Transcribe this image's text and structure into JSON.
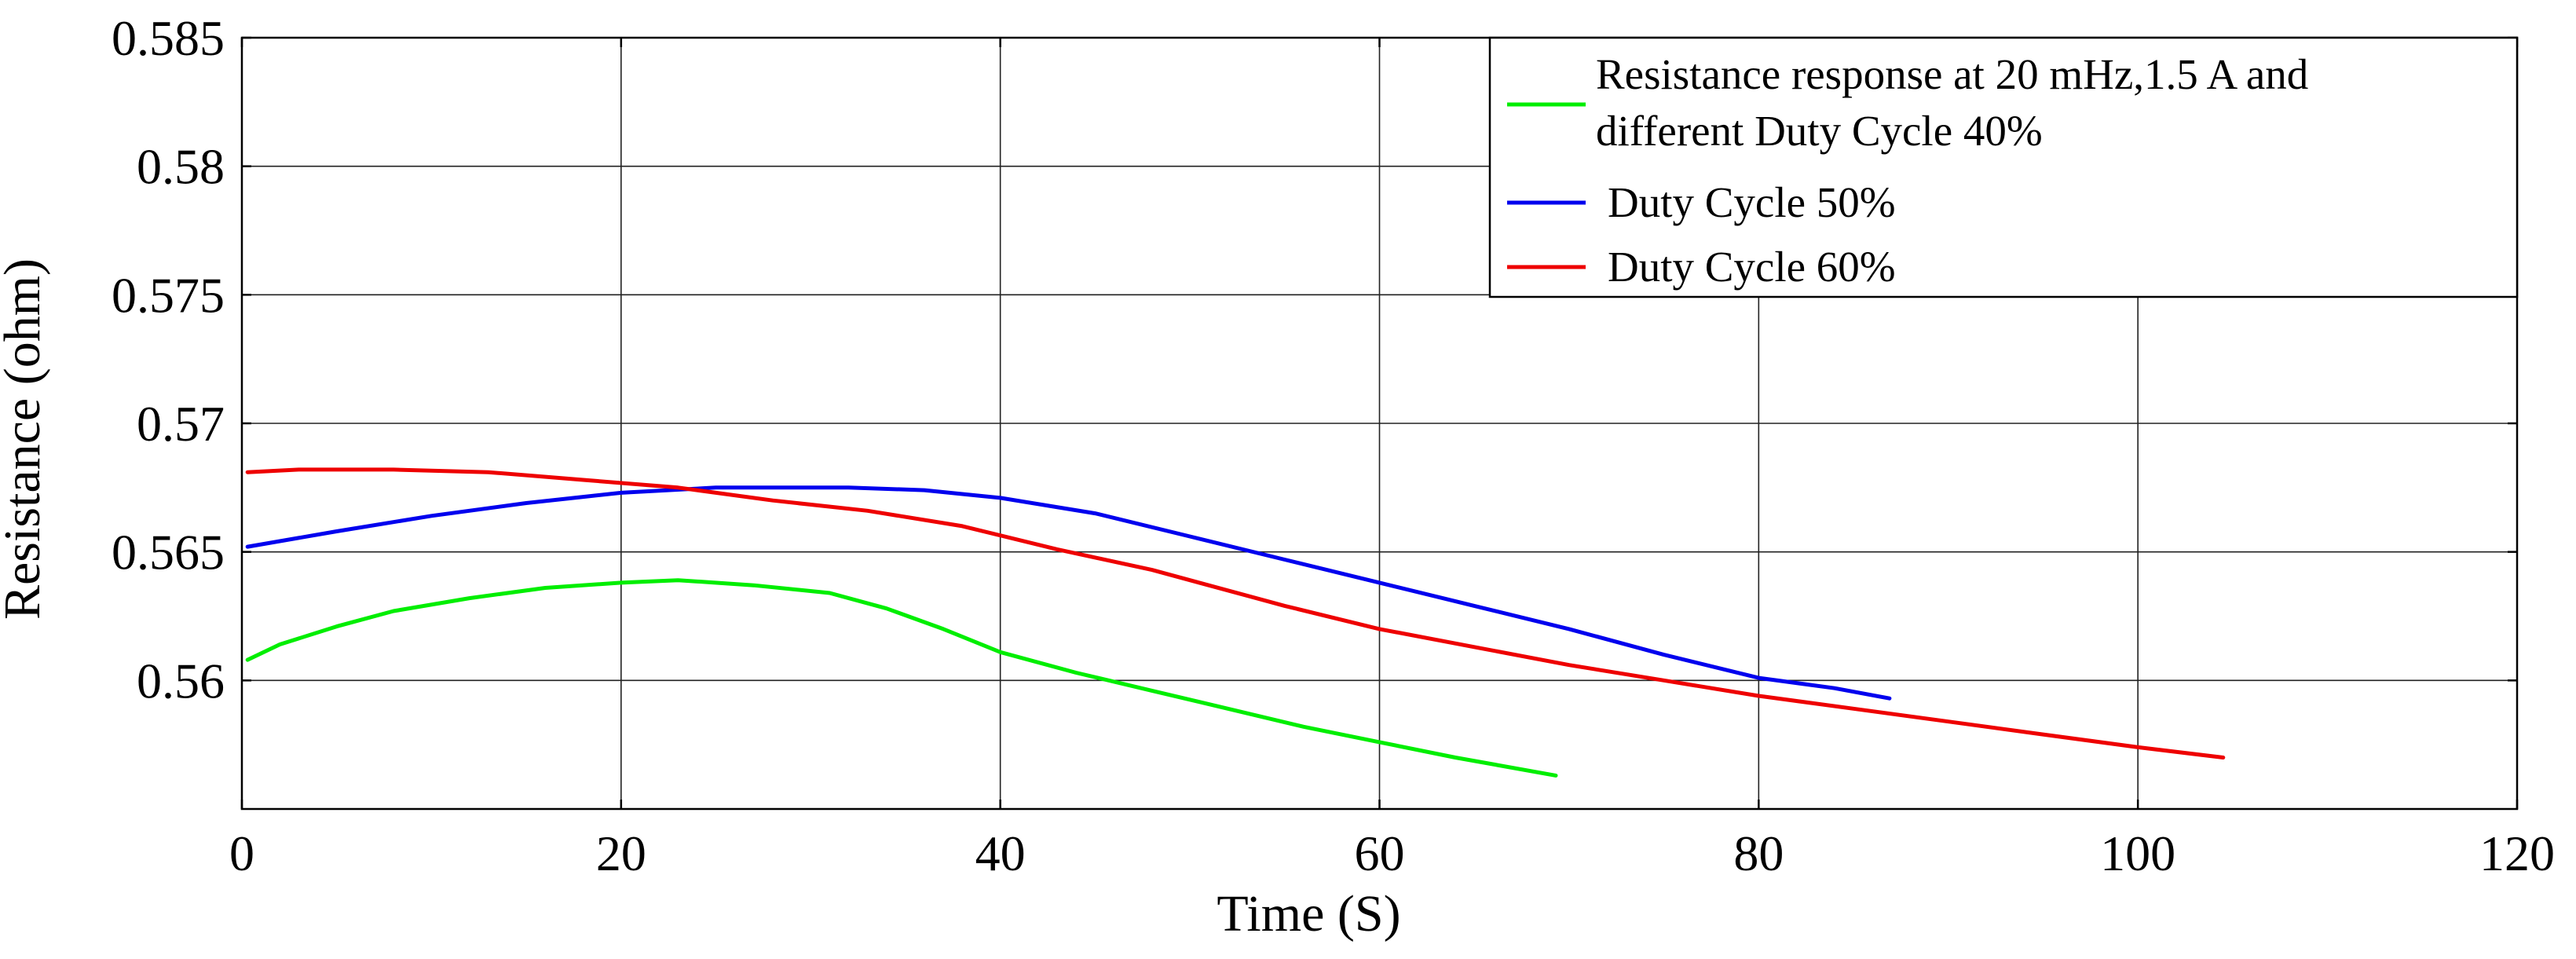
{
  "chart_data": {
    "type": "line",
    "title": "",
    "xlabel": "Time (S)",
    "ylabel": "Resistance (ohm)",
    "xlim": [
      0,
      120
    ],
    "ylim": [
      0.555,
      0.585
    ],
    "grid": true,
    "x_ticks": [
      0,
      20,
      40,
      60,
      80,
      100,
      120
    ],
    "y_ticks": [
      0.56,
      0.565,
      0.57,
      0.575,
      0.58,
      0.585
    ],
    "x_tick_labels": [
      "0",
      "20",
      "40",
      "60",
      "80",
      "100",
      "120"
    ],
    "y_tick_labels": [
      "0.56",
      "0.565",
      "0.57",
      "0.575",
      "0.58",
      "0.585"
    ],
    "legend_position": "top-right",
    "series": [
      {
        "name": "Resistance response at 20 mHz,1.5 A and different Duty Cycle 40%",
        "legend_lines": [
          "Resistance response at 20 mHz,1.5 A and",
          "different Duty Cycle 40%"
        ],
        "color": "#00ee00",
        "x": [
          0.3,
          2,
          5,
          8,
          12,
          16,
          20,
          23,
          27,
          31,
          34,
          37,
          40,
          44,
          48,
          52,
          56,
          60,
          64,
          69.3
        ],
        "y": [
          0.5608,
          0.5614,
          0.5621,
          0.5627,
          0.5632,
          0.5636,
          0.5638,
          0.5639,
          0.5637,
          0.5634,
          0.5628,
          0.562,
          0.5611,
          0.5603,
          0.5596,
          0.5589,
          0.5582,
          0.5576,
          0.557,
          0.5563
        ]
      },
      {
        "name": "Duty Cycle 50%",
        "legend_lines": [
          "Duty Cycle 50%"
        ],
        "color": "#0000ee",
        "x": [
          0.3,
          5,
          10,
          15,
          20,
          25,
          32,
          36,
          40,
          45,
          50,
          55,
          60,
          65,
          70,
          75,
          80,
          84,
          86.9
        ],
        "y": [
          0.5652,
          0.5658,
          0.5664,
          0.5669,
          0.5673,
          0.5675,
          0.5675,
          0.5674,
          0.5671,
          0.5665,
          0.5656,
          0.5647,
          0.5638,
          0.5629,
          0.562,
          0.561,
          0.5601,
          0.5597,
          0.5593
        ]
      },
      {
        "name": "Duty Cycle 60%",
        "legend_lines": [
          "Duty Cycle 60%"
        ],
        "color": "#ee0000",
        "x": [
          0.3,
          3,
          8,
          13,
          18,
          23,
          28,
          33,
          38,
          43,
          48,
          55,
          60,
          65,
          70,
          75,
          80,
          85,
          90,
          95,
          100,
          104.5
        ],
        "y": [
          0.5681,
          0.5682,
          0.5682,
          0.5681,
          0.5678,
          0.5675,
          0.567,
          0.5666,
          0.566,
          0.5651,
          0.5643,
          0.5629,
          0.562,
          0.5613,
          0.5606,
          0.56,
          0.5594,
          0.5589,
          0.5584,
          0.5579,
          0.5574,
          0.557
        ]
      }
    ]
  }
}
